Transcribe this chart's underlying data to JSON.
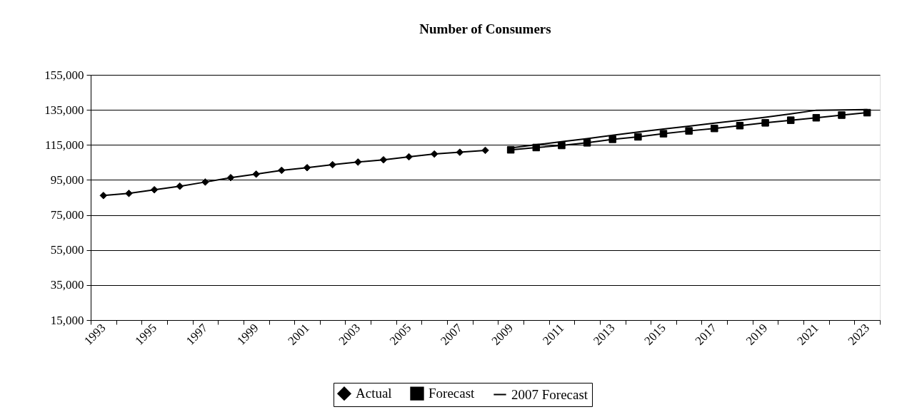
{
  "chart_data": {
    "type": "line",
    "title": "Number of Consumers",
    "categories": [
      "1993",
      null,
      "1995",
      null,
      "1997",
      null,
      "1999",
      null,
      "2001",
      null,
      "2003",
      null,
      "2005",
      null,
      "2007",
      null,
      "2009",
      null,
      "2011",
      null,
      "2013",
      null,
      "2015",
      null,
      "2017",
      null,
      "2019",
      null,
      "2021",
      null,
      "2023"
    ],
    "series": [
      {
        "name": "Actual",
        "color": "#000000",
        "marker": "diamond",
        "values": [
          86100,
          87300,
          89400,
          91400,
          93800,
          96300,
          98300,
          100500,
          102000,
          103700,
          105200,
          106500,
          108200,
          109800,
          110800,
          111900,
          null,
          null,
          null,
          null,
          null,
          null,
          null,
          null,
          null,
          null,
          null,
          null,
          null,
          null,
          null
        ]
      },
      {
        "name": "Forecast",
        "color": "#000000",
        "marker": "square",
        "values": [
          null,
          null,
          null,
          null,
          null,
          null,
          null,
          null,
          null,
          null,
          null,
          null,
          null,
          null,
          null,
          null,
          112200,
          113500,
          114700,
          116200,
          118200,
          119600,
          121400,
          123000,
          124400,
          126000,
          127600,
          129100,
          130500,
          132000,
          133400
        ]
      },
      {
        "name": "2007 Forecast",
        "color": "#000000",
        "marker": "none",
        "values": [
          null,
          null,
          null,
          null,
          null,
          null,
          null,
          null,
          null,
          null,
          null,
          null,
          null,
          null,
          null,
          null,
          113300,
          115100,
          116800,
          118600,
          120500,
          122300,
          124100,
          125700,
          127400,
          129100,
          130800,
          132700,
          134800,
          135000,
          135200
        ]
      }
    ],
    "ylim": [
      15000,
      155000
    ],
    "yticks": [
      {
        "value": 15000,
        "label": "15,000"
      },
      {
        "value": 35000,
        "label": "35,000"
      },
      {
        "value": 55000,
        "label": "55,000"
      },
      {
        "value": 75000,
        "label": "75,000"
      },
      {
        "value": 95000,
        "label": "95,000"
      },
      {
        "value": 115000,
        "label": "115,000"
      },
      {
        "value": 135000,
        "label": "135,000"
      },
      {
        "value": 155000,
        "label": "155,000"
      }
    ],
    "grid": "y",
    "legend": "bottom",
    "line_style": "solid"
  }
}
